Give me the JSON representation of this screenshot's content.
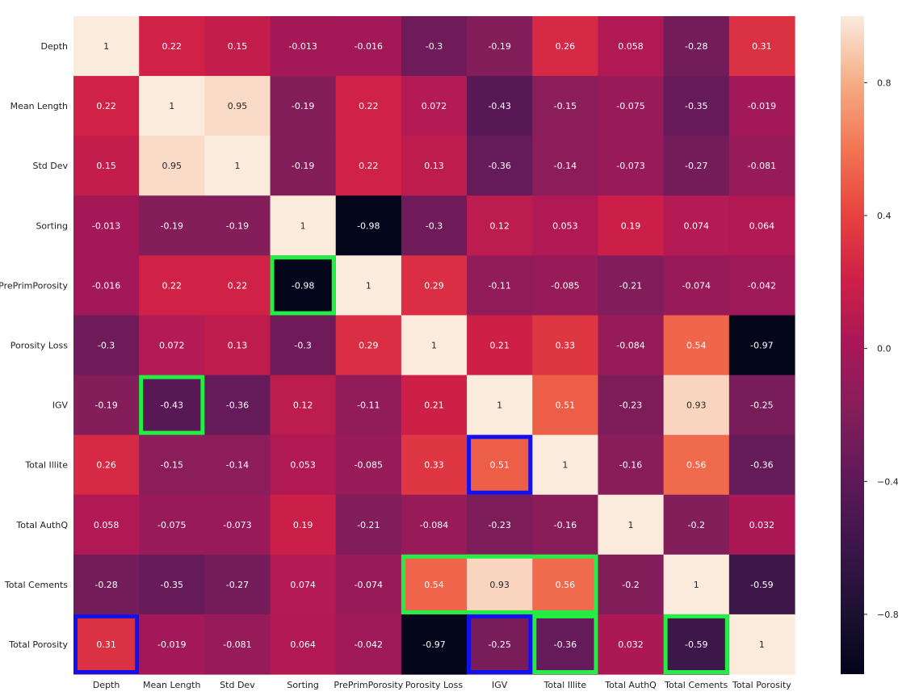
{
  "chart_data": {
    "type": "heatmap",
    "title": "",
    "xlabel": "",
    "ylabel": "",
    "rows": [
      "Depth",
      "Mean Length",
      "Std Dev",
      "Sorting",
      "PrePrimPorosity",
      "Porosity Loss",
      "IGV",
      "Total Illite",
      "Total AuthQ",
      "Total Cements",
      "Total Porosity"
    ],
    "columns": [
      "Depth",
      "Mean Length",
      "Std Dev",
      "Sorting",
      "PrePrimPorosity",
      "Porosity Loss",
      "IGV",
      "Total Illite",
      "Total AuthQ",
      "Total Cements",
      "Total Porosity"
    ],
    "values": [
      [
        1,
        0.22,
        0.15,
        -0.013,
        -0.016,
        -0.3,
        -0.19,
        0.26,
        0.058,
        -0.28,
        0.31
      ],
      [
        0.22,
        1,
        0.95,
        -0.19,
        0.22,
        0.072,
        -0.43,
        -0.15,
        -0.075,
        -0.35,
        -0.019
      ],
      [
        0.15,
        0.95,
        1,
        -0.19,
        0.22,
        0.13,
        -0.36,
        -0.14,
        -0.073,
        -0.27,
        -0.081
      ],
      [
        -0.013,
        -0.19,
        -0.19,
        1,
        -0.98,
        -0.3,
        0.12,
        0.053,
        0.19,
        0.074,
        0.064
      ],
      [
        -0.016,
        0.22,
        0.22,
        -0.98,
        1,
        0.29,
        -0.11,
        -0.085,
        -0.21,
        -0.074,
        -0.042
      ],
      [
        -0.3,
        0.072,
        0.13,
        -0.3,
        0.29,
        1,
        0.21,
        0.33,
        -0.084,
        0.54,
        -0.97
      ],
      [
        -0.19,
        -0.43,
        -0.36,
        0.12,
        -0.11,
        0.21,
        1,
        0.51,
        -0.23,
        0.93,
        -0.25
      ],
      [
        0.26,
        -0.15,
        -0.14,
        0.053,
        -0.085,
        0.33,
        0.51,
        1,
        -0.16,
        0.56,
        -0.36
      ],
      [
        0.058,
        -0.075,
        -0.073,
        0.19,
        -0.21,
        -0.084,
        -0.23,
        -0.16,
        1,
        -0.2,
        0.032
      ],
      [
        -0.28,
        -0.35,
        -0.27,
        0.074,
        -0.074,
        0.54,
        0.93,
        0.56,
        -0.2,
        1,
        -0.59
      ],
      [
        0.31,
        -0.019,
        -0.081,
        0.064,
        -0.042,
        -0.97,
        -0.25,
        -0.36,
        0.032,
        -0.59,
        1
      ]
    ],
    "colormap": "rocket",
    "colorbar": {
      "range": [
        -0.98,
        1
      ],
      "ticks": [
        -0.8,
        -0.4,
        0.0,
        0.4,
        0.8
      ],
      "tick_labels": [
        "−0.8",
        "−0.4",
        "0.0",
        "0.4",
        "0.8"
      ]
    },
    "highlights": [
      {
        "color": "#22ee44",
        "row_start": 4,
        "row_end": 4,
        "col_start": 3,
        "col_end": 3
      },
      {
        "color": "#22ee44",
        "row_start": 6,
        "row_end": 6,
        "col_start": 1,
        "col_end": 1
      },
      {
        "color": "#22ee44",
        "row_start": 9,
        "row_end": 9,
        "col_start": 5,
        "col_end": 7
      },
      {
        "color": "#22ee44",
        "row_start": 10,
        "row_end": 10,
        "col_start": 7,
        "col_end": 7
      },
      {
        "color": "#22ee44",
        "row_start": 10,
        "row_end": 10,
        "col_start": 9,
        "col_end": 9
      },
      {
        "color": "#1111ee",
        "row_start": 7,
        "row_end": 7,
        "col_start": 6,
        "col_end": 6
      },
      {
        "color": "#1111ee",
        "row_start": 10,
        "row_end": 10,
        "col_start": 0,
        "col_end": 0
      },
      {
        "color": "#1111ee",
        "row_start": 10,
        "row_end": 10,
        "col_start": 6,
        "col_end": 6
      }
    ]
  }
}
